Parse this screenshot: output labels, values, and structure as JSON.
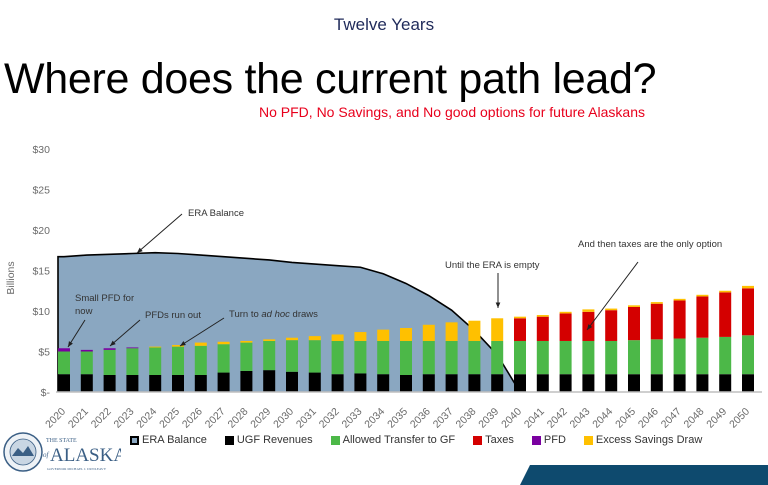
{
  "header": {
    "top_label": "Twelve Years",
    "title": "Where does the current path lead?",
    "subtitle": "No PFD, No Savings, and No good options for future Alaskans"
  },
  "colors": {
    "era_fill": "#8aa7c1",
    "ugf": "#000000",
    "transfer": "#4cb848",
    "taxes": "#d40000",
    "pfd": "#7a00a0",
    "excess": "#ffc000",
    "title_blue": "#1f2a5a",
    "subtitle_red": "#e8001c",
    "banner": "#0e4a6e"
  },
  "annotations": {
    "era_balance": "ERA Balance",
    "small_pfd_1": "Small PFD for",
    "small_pfd_2": "now",
    "pfds_run_out": "PFDs run out",
    "turn_to": "Turn to ",
    "ad_hoc": "ad hoc",
    "draws": " draws",
    "until_empty": "Until the ERA is empty",
    "taxes_only": "And then taxes are the only option"
  },
  "legend": [
    {
      "label": "ERA Balance",
      "key": "era"
    },
    {
      "label": "UGF Revenues",
      "key": "ugf"
    },
    {
      "label": "Allowed Transfer to GF",
      "key": "transfer"
    },
    {
      "label": "Taxes",
      "key": "taxes"
    },
    {
      "label": "PFD",
      "key": "pfd"
    },
    {
      "label": "Excess Savings Draw",
      "key": "excess"
    }
  ],
  "logo": {
    "line1": "THE STATE",
    "line2": "of",
    "line3": "ALASKA",
    "line4": "GOVERNOR MICHAEL J. DUNLEAVY"
  },
  "chart_data": {
    "type": "bar",
    "subtype": "stacked bar with area overlay",
    "title": "Where does the current path lead?",
    "subtitle": "No PFD, No Savings, and No good options for future Alaskans",
    "xlabel": "",
    "ylabel": "Billions",
    "ylim": [
      0,
      30
    ],
    "yticks": [
      "$-",
      "$5",
      "$10",
      "$15",
      "$20",
      "$25",
      "$30"
    ],
    "grid": false,
    "legend_position": "bottom",
    "categories": [
      "2020",
      "2021",
      "2022",
      "2023",
      "2024",
      "2025",
      "2026",
      "2027",
      "2028",
      "2029",
      "2030",
      "2031",
      "2032",
      "2033",
      "2034",
      "2035",
      "2036",
      "2037",
      "2038",
      "2039",
      "2040",
      "2041",
      "2042",
      "2043",
      "2044",
      "2045",
      "2046",
      "2047",
      "2048",
      "2049",
      "2050"
    ],
    "area_series": {
      "name": "ERA Balance",
      "values": [
        16.7,
        16.9,
        17.0,
        17.1,
        17.2,
        17.1,
        16.9,
        16.7,
        16.5,
        16.3,
        16.0,
        15.8,
        15.6,
        15.4,
        14.6,
        13.4,
        11.9,
        10.1,
        7.6,
        4.6,
        0,
        0,
        0,
        0,
        0,
        0,
        0,
        0,
        0,
        0,
        0
      ]
    },
    "series": [
      {
        "name": "UGF Revenues",
        "values": [
          2.2,
          2.2,
          2.1,
          2.1,
          2.1,
          2.1,
          2.1,
          2.4,
          2.6,
          2.7,
          2.5,
          2.4,
          2.2,
          2.3,
          2.2,
          2.1,
          2.2,
          2.2,
          2.2,
          2.2,
          2.2,
          2.2,
          2.2,
          2.2,
          2.2,
          2.2,
          2.2,
          2.2,
          2.2,
          2.2,
          2.2
        ]
      },
      {
        "name": "Allowed Transfer to GF",
        "values": [
          2.8,
          2.8,
          3.1,
          3.3,
          3.4,
          3.5,
          3.6,
          3.5,
          3.5,
          3.6,
          3.9,
          4.0,
          4.1,
          4.0,
          4.1,
          4.2,
          4.1,
          4.1,
          4.1,
          4.1,
          4.1,
          4.1,
          4.1,
          4.1,
          4.1,
          4.2,
          4.3,
          4.4,
          4.5,
          4.6,
          4.8
        ]
      },
      {
        "name": "Taxes",
        "values": [
          0,
          0,
          0,
          0,
          0,
          0,
          0,
          0,
          0,
          0,
          0,
          0,
          0,
          0,
          0,
          0,
          0,
          0,
          0,
          0,
          2.8,
          3.0,
          3.4,
          3.6,
          3.8,
          4.1,
          4.4,
          4.7,
          5.1,
          5.5,
          5.8
        ]
      },
      {
        "name": "PFD",
        "values": [
          0.4,
          0.2,
          0.2,
          0.1,
          0,
          0,
          0,
          0,
          0,
          0,
          0,
          0,
          0,
          0,
          0,
          0,
          0,
          0,
          0,
          0,
          0,
          0,
          0,
          0,
          0,
          0,
          0,
          0,
          0,
          0,
          0
        ]
      },
      {
        "name": "Excess Savings Draw",
        "values": [
          0,
          0,
          0,
          0,
          0.1,
          0.2,
          0.4,
          0.3,
          0.2,
          0.2,
          0.3,
          0.5,
          0.8,
          1.1,
          1.4,
          1.6,
          2.0,
          2.3,
          2.5,
          2.8,
          0.2,
          0.2,
          0.2,
          0.3,
          0.2,
          0.2,
          0.2,
          0.2,
          0.2,
          0.2,
          0.3
        ]
      }
    ],
    "annotations": [
      {
        "text": "ERA Balance",
        "target": "2024"
      },
      {
        "text": "Small PFD for now",
        "target": "2020"
      },
      {
        "text": "PFDs run out",
        "target": "2022"
      },
      {
        "text": "Turn to ad hoc draws",
        "target": "2025"
      },
      {
        "text": "Until the ERA is empty",
        "target": "2039"
      },
      {
        "text": "And then taxes are the only option",
        "target": "2043"
      }
    ]
  }
}
